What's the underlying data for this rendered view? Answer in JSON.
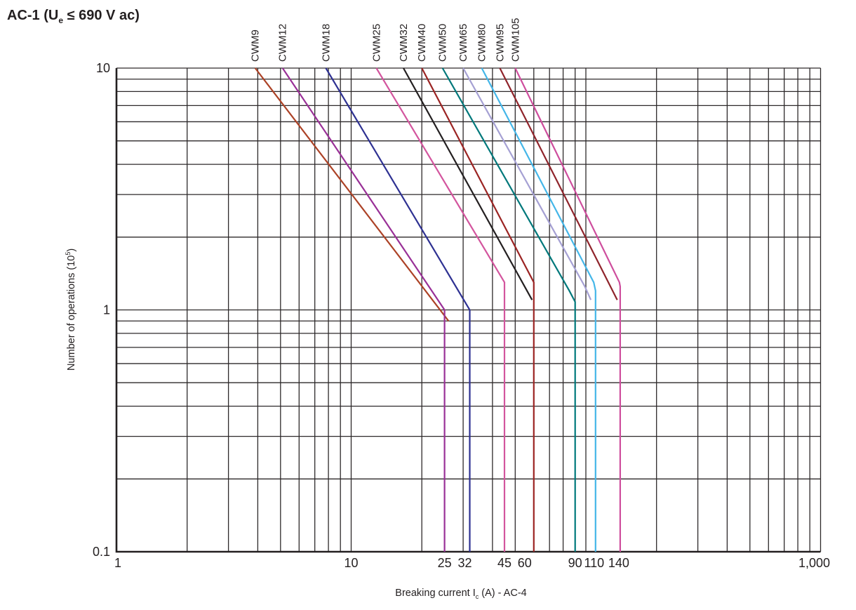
{
  "title": {
    "pre": "AC-1 (U",
    "sub": "e",
    "post": " ≤ 690 V ac)"
  },
  "chart_data": {
    "type": "line",
    "x_scale": "log",
    "y_scale": "log",
    "xlim": [
      1,
      1000
    ],
    "ylim": [
      0.1,
      10
    ],
    "grid": "log minor gridlines on, both axes",
    "legend_position": "series labels rotated above top axis",
    "xlabel": {
      "pre": "Breaking current I",
      "sub": "c",
      "post": " (A) - AC-4"
    },
    "ylabel": {
      "pre": "Number of operations (10",
      "sup": "5",
      "post": ")"
    },
    "x_major_ticks": [
      {
        "v": 1,
        "label": "1",
        "dx": 2
      },
      {
        "v": 10,
        "label": "10",
        "dx": 0
      },
      {
        "v": 1000,
        "label": "1,000",
        "dx": -9
      }
    ],
    "x_rated_ticks": [
      {
        "v": 25,
        "label": "25",
        "dx": 0
      },
      {
        "v": 32,
        "label": "32",
        "dx": -7
      },
      {
        "v": 45,
        "label": "45",
        "dx": 0
      },
      {
        "v": 60,
        "label": "60",
        "dx": -13
      },
      {
        "v": 90,
        "label": "90",
        "dx": 0
      },
      {
        "v": 110,
        "label": "110",
        "dx": -2
      },
      {
        "v": 140,
        "label": "140",
        "dx": -2
      }
    ],
    "y_major_ticks": [
      {
        "v": 10,
        "label": "10"
      },
      {
        "v": 1,
        "label": "1"
      },
      {
        "v": 0.1,
        "label": "0.1"
      }
    ],
    "series": [
      {
        "name": "CWM9",
        "color": "#AC4226",
        "points": [
          [
            3.9,
            10
          ],
          [
            26,
            0.9
          ]
        ]
      },
      {
        "name": "CWM12",
        "color": "#993097",
        "points": [
          [
            5.1,
            10
          ],
          [
            25,
            1.0
          ],
          [
            25,
            0.1
          ]
        ]
      },
      {
        "name": "CWM18",
        "color": "#2E3192",
        "points": [
          [
            7.8,
            10
          ],
          [
            32,
            1.0
          ],
          [
            32,
            0.1
          ]
        ]
      },
      {
        "name": "CWM25",
        "color": "#D3559E",
        "points": [
          [
            12.8,
            10
          ],
          [
            45,
            1.3
          ],
          [
            45,
            0.1
          ]
        ]
      },
      {
        "name": "CWM32",
        "color": "#231F20",
        "points": [
          [
            16.7,
            10
          ],
          [
            59,
            1.1
          ]
        ]
      },
      {
        "name": "CWM40",
        "color": "#9B2423",
        "points": [
          [
            20,
            10
          ],
          [
            60,
            1.3
          ],
          [
            60,
            0.1
          ]
        ]
      },
      {
        "name": "CWM50",
        "color": "#00787B",
        "points": [
          [
            24.5,
            10
          ],
          [
            85,
            1.2
          ],
          [
            90,
            1.08
          ],
          [
            90,
            0.1
          ]
        ]
      },
      {
        "name": "CWM65",
        "color": "#A5A0D3",
        "points": [
          [
            30,
            10
          ],
          [
            99,
            1.25
          ],
          [
            105,
            1.1
          ]
        ]
      },
      {
        "name": "CWM80",
        "color": "#44B6E8",
        "points": [
          [
            36,
            10
          ],
          [
            108,
            1.3
          ],
          [
            110,
            1.2
          ],
          [
            110,
            0.1
          ]
        ]
      },
      {
        "name": "CWM95",
        "color": "#8F242B",
        "points": [
          [
            43,
            10
          ],
          [
            136,
            1.1
          ]
        ]
      },
      {
        "name": "CWM105",
        "color": "#CE4D9D",
        "points": [
          [
            50,
            10
          ],
          [
            139,
            1.3
          ],
          [
            140,
            1.25
          ],
          [
            140,
            0.1
          ]
        ]
      }
    ]
  }
}
